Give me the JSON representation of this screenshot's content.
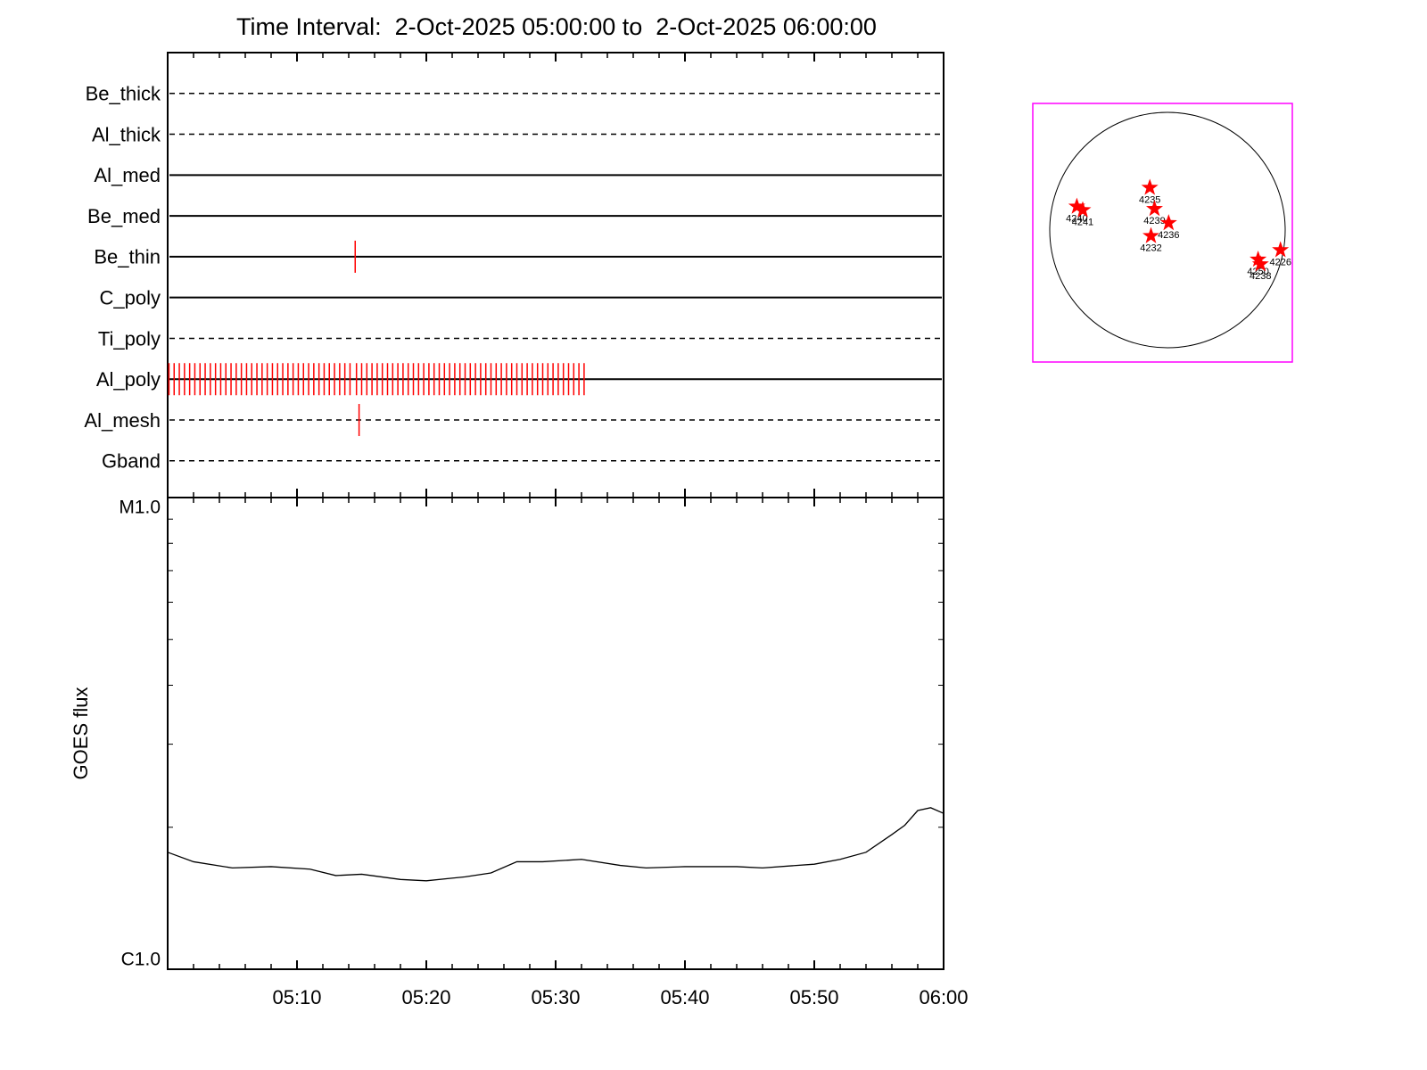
{
  "chart_data": [
    {
      "type": "timeline",
      "title": "Time Interval:  2-Oct-2025 05:00:00 to  2-Oct-2025 06:00:00",
      "xlim": [
        0,
        60
      ],
      "xticks": [
        0,
        10,
        20,
        30,
        40,
        50,
        60
      ],
      "event_color": "#ff0000",
      "channels": [
        {
          "name": "Be_thick",
          "style": "dashed",
          "events": []
        },
        {
          "name": "Al_thick",
          "style": "dashed",
          "events": []
        },
        {
          "name": "Al_med",
          "style": "solid",
          "events": []
        },
        {
          "name": "Be_med",
          "style": "solid",
          "events": []
        },
        {
          "name": "Be_thin",
          "style": "solid",
          "events": [
            14.5
          ]
        },
        {
          "name": "C_poly",
          "style": "solid",
          "events": []
        },
        {
          "name": "Ti_poly",
          "style": "dashed",
          "events": []
        },
        {
          "name": "Al_poly",
          "style": "solid",
          "events": [
            0.1,
            0.5,
            0.9,
            1.3,
            1.7,
            2.1,
            2.5,
            2.9,
            3.3,
            3.7,
            4.1,
            4.5,
            4.9,
            5.3,
            5.7,
            6.1,
            6.5,
            6.9,
            7.3,
            7.7,
            8.1,
            8.5,
            8.9,
            9.3,
            9.7,
            10.1,
            10.5,
            10.9,
            11.3,
            11.7,
            12.1,
            12.5,
            12.9,
            13.3,
            13.7,
            14.1,
            14.6,
            15.0,
            15.4,
            15.8,
            16.2,
            16.6,
            17.0,
            17.4,
            17.8,
            18.2,
            18.6,
            19.0,
            19.4,
            19.8,
            20.2,
            20.6,
            21.0,
            21.4,
            21.8,
            22.2,
            22.6,
            23.0,
            23.4,
            23.8,
            24.2,
            24.6,
            25.0,
            25.4,
            25.8,
            26.2,
            26.6,
            27.0,
            27.4,
            27.8,
            28.2,
            28.6,
            29.0,
            29.4,
            29.8,
            30.2,
            30.6,
            31.0,
            31.4,
            31.8,
            32.2
          ]
        },
        {
          "name": "Al_mesh",
          "style": "dashed",
          "events": [
            14.8
          ]
        },
        {
          "name": "Gband",
          "style": "dashed",
          "events": []
        }
      ]
    },
    {
      "type": "line",
      "ylabel": "GOES flux",
      "log_scale": true,
      "xlim": [
        0,
        60
      ],
      "xticks": [
        {
          "value": 10,
          "label": "05:10"
        },
        {
          "value": 20,
          "label": "05:20"
        },
        {
          "value": 30,
          "label": "05:30"
        },
        {
          "value": 40,
          "label": "05:40"
        },
        {
          "value": 50,
          "label": "05:50"
        },
        {
          "value": 60,
          "label": "06:00"
        }
      ],
      "ylim": [
        1e-06,
        1e-05
      ],
      "yticks": [
        {
          "value": 1e-06,
          "label": "C1.0"
        },
        {
          "value": 1e-05,
          "label": "M1.0"
        }
      ],
      "series": [
        {
          "color": "#000000",
          "x": [
            0,
            2,
            5,
            8,
            11,
            13,
            15,
            18,
            20,
            23,
            25,
            27,
            29,
            32,
            35,
            37,
            40,
            44,
            46,
            50,
            52,
            54,
            56,
            57,
            58,
            59,
            60
          ],
          "values": [
            1.77e-06,
            1.69e-06,
            1.64e-06,
            1.65e-06,
            1.63e-06,
            1.58e-06,
            1.59e-06,
            1.55e-06,
            1.54e-06,
            1.57e-06,
            1.6e-06,
            1.69e-06,
            1.69e-06,
            1.71e-06,
            1.66e-06,
            1.64e-06,
            1.65e-06,
            1.65e-06,
            1.64e-06,
            1.67e-06,
            1.71e-06,
            1.77e-06,
            1.93e-06,
            2.02e-06,
            2.17e-06,
            2.2e-06,
            2.14e-06
          ]
        }
      ]
    },
    {
      "type": "map",
      "frame_color": "#ff00ff",
      "marker_color": "#ff0000",
      "regions": [
        {
          "label": "4240",
          "x": -0.77,
          "y": 0.2
        },
        {
          "label": "4241",
          "x": -0.72,
          "y": 0.17
        },
        {
          "label": "4235",
          "x": -0.15,
          "y": 0.36
        },
        {
          "label": "4239",
          "x": -0.11,
          "y": 0.18
        },
        {
          "label": "4236",
          "x": 0.01,
          "y": 0.06
        },
        {
          "label": "4232",
          "x": -0.14,
          "y": -0.05
        },
        {
          "label": "4250",
          "x": 0.77,
          "y": -0.25
        },
        {
          "label": "4238",
          "x": 0.79,
          "y": -0.29
        },
        {
          "label": "4226",
          "x": 0.96,
          "y": -0.17
        }
      ]
    }
  ]
}
